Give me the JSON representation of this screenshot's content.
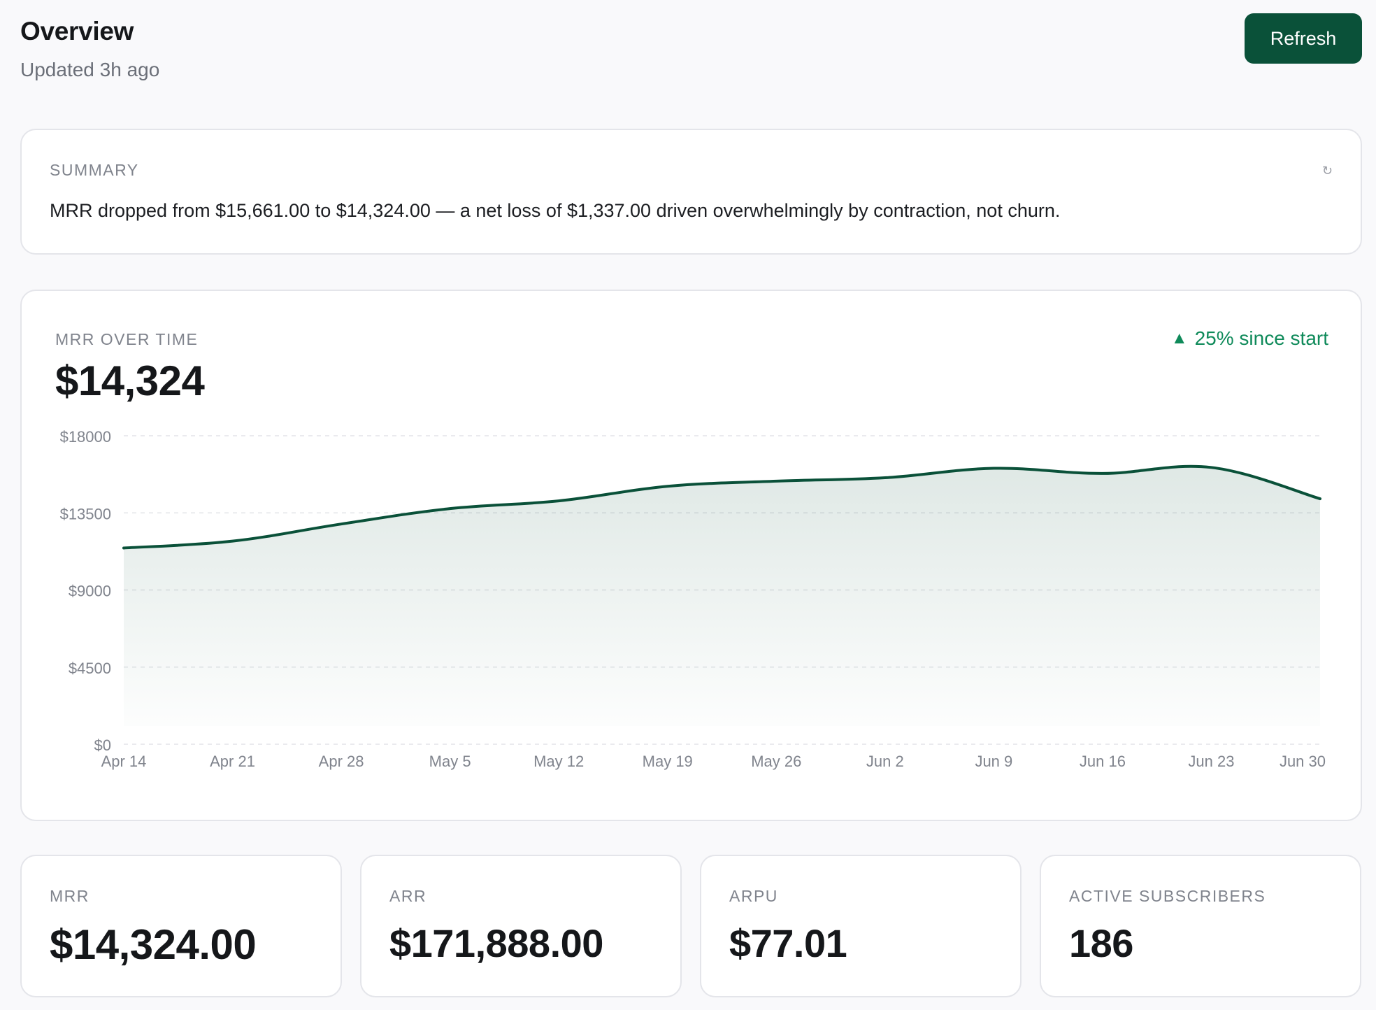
{
  "header": {
    "title": "Overview",
    "subtitle": "Updated 3h ago",
    "refresh_label": "Refresh"
  },
  "summary": {
    "label": "SUMMARY",
    "text": "MRR dropped from $15,661.00 to $14,324.00 — a net loss of $1,337.00 driven overwhelmingly by contraction, not churn.",
    "icon": "refresh-icon"
  },
  "mrr_chart": {
    "label": "MRR OVER TIME",
    "value": "$14,324",
    "change": "25% since start",
    "change_icon": "up-arrow-icon",
    "change_color": "#0f8a5a",
    "line_color": "#0a5139"
  },
  "chart_data": {
    "type": "area",
    "title": "MRR OVER TIME",
    "xlabel": "",
    "ylabel": "",
    "ylim": [
      0,
      18000
    ],
    "yticks": [
      "$18000",
      "$13500",
      "$9000",
      "$4500",
      "$0"
    ],
    "ytick_values": [
      18000,
      13500,
      9000,
      4500,
      0
    ],
    "categories": [
      "Apr 14",
      "Apr 21",
      "Apr 28",
      "May 5",
      "May 12",
      "May 19",
      "May 26",
      "Jun 2",
      "Jun 9",
      "Jun 16",
      "Jun 23",
      "Jun 30"
    ],
    "series": [
      {
        "values": [
          11450,
          11850,
          12850,
          13750,
          14200,
          15050,
          15350,
          15550,
          16100,
          15800,
          16150,
          14324
        ]
      }
    ],
    "grid": true,
    "legend": "none"
  },
  "metrics": [
    {
      "label": "MRR",
      "value": "$14,324.00"
    },
    {
      "label": "ARR",
      "value": "$171,888.00"
    },
    {
      "label": "ARPU",
      "value": "$77.01"
    },
    {
      "label": "ACTIVE SUBSCRIBERS",
      "value": "186"
    }
  ]
}
